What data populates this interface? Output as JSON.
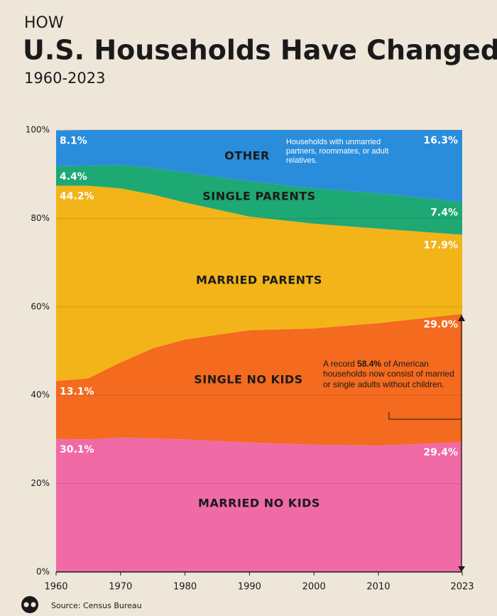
{
  "chart_data": {
    "type": "area",
    "kicker": "HOW",
    "title": "U.S. Households Have Changed",
    "subtitle": "1960-2023",
    "x": [
      1960,
      1965,
      1970,
      1975,
      1980,
      1990,
      2000,
      2010,
      2023
    ],
    "xlim": [
      1960,
      2023
    ],
    "xticks": [
      1960,
      1970,
      1980,
      1990,
      2000,
      2010,
      2023
    ],
    "ylim": [
      0,
      100
    ],
    "yticks": [
      {
        "value": 0,
        "label": "0%"
      },
      {
        "value": 20,
        "label": "20%"
      },
      {
        "value": 40,
        "label": "40%"
      },
      {
        "value": 60,
        "label": "60%"
      },
      {
        "value": 80,
        "label": "80%"
      },
      {
        "value": 100,
        "label": "100%"
      }
    ],
    "grid": true,
    "stacked": true,
    "series": [
      {
        "name": "MARRIED NO KIDS",
        "color": "#f06aa6",
        "values": [
          30.1,
          30.0,
          30.4,
          30.2,
          30.0,
          29.3,
          28.8,
          28.6,
          29.4
        ],
        "value_labels": [
          "30.1%",
          null,
          null,
          null,
          null,
          null,
          null,
          null,
          "29.4%"
        ]
      },
      {
        "name": "SINGLE NO KIDS",
        "color": "#f46a1e",
        "values": [
          13.1,
          13.8,
          17.0,
          20.4,
          22.6,
          25.4,
          26.3,
          27.7,
          29.0
        ],
        "value_labels": [
          "13.1%",
          null,
          null,
          null,
          null,
          null,
          null,
          null,
          "29.0%"
        ]
      },
      {
        "name": "MARRIED PARENTS",
        "color": "#f2b419",
        "values": [
          44.2,
          43.6,
          39.4,
          34.8,
          31.0,
          25.7,
          23.7,
          21.4,
          17.9
        ],
        "value_labels": [
          "44.2%",
          null,
          null,
          null,
          null,
          null,
          null,
          null,
          "17.9%"
        ]
      },
      {
        "name": "SINGLE PARENTS",
        "color": "#1ea874",
        "values": [
          4.4,
          4.5,
          5.3,
          6.0,
          6.8,
          8.0,
          8.0,
          8.0,
          7.4
        ],
        "value_labels": [
          "4.4%",
          null,
          null,
          null,
          null,
          null,
          null,
          null,
          "7.4%"
        ]
      },
      {
        "name": "OTHER",
        "color": "#2a8ddc",
        "values": [
          8.1,
          8.1,
          7.9,
          8.6,
          9.6,
          11.6,
          13.2,
          14.3,
          16.3
        ],
        "value_labels": [
          "8.1%",
          null,
          null,
          null,
          null,
          null,
          null,
          null,
          "16.3%"
        ]
      }
    ],
    "annotations": [
      "Households with unmarried partners, roommates, or adult relatives.",
      {
        "before": "A record",
        "bold": "58.4%",
        "after": "of American households now consist of married or single adults without children."
      }
    ],
    "source": "Source: Census Bureau"
  }
}
